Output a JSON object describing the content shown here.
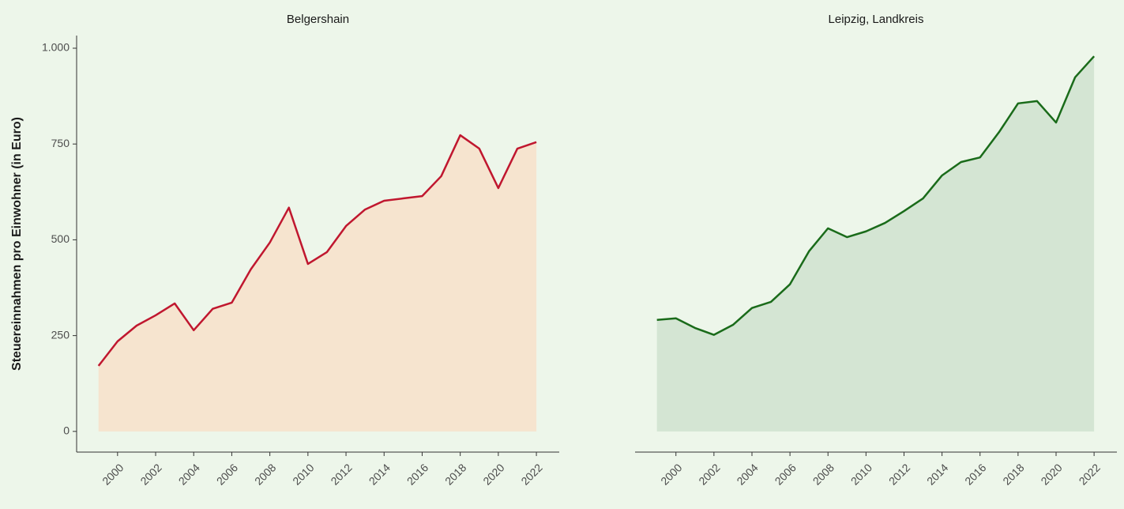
{
  "chart_data": [
    {
      "type": "area",
      "title": "Belgershain",
      "ylabel": "Steuereinnahmen pro Einwohner (in Euro)",
      "x": [
        1999,
        2000,
        2001,
        2002,
        2003,
        2004,
        2005,
        2006,
        2007,
        2008,
        2009,
        2010,
        2011,
        2012,
        2013,
        2014,
        2015,
        2016,
        2017,
        2018,
        2019,
        2020,
        2021,
        2022
      ],
      "values": [
        171,
        235,
        276,
        303,
        334,
        264,
        320,
        336,
        423,
        493,
        584,
        437,
        468,
        536,
        579,
        602,
        608,
        614,
        666,
        773,
        738,
        635,
        738,
        755
      ],
      "line_color": "#c0172f",
      "fill_color": "#f6e4cf",
      "xlim": [
        1997.85,
        2023.2
      ],
      "xticks": [
        2000,
        2002,
        2004,
        2006,
        2008,
        2010,
        2012,
        2014,
        2016,
        2018,
        2020,
        2022
      ],
      "ylim": [
        -54,
        1033
      ],
      "yticks": [
        0,
        250,
        500,
        750,
        {
          "value": 1000,
          "label": "1.000"
        }
      ]
    },
    {
      "type": "area",
      "title": "Leipzig, Landkreis",
      "x": [
        1999,
        2000,
        2001,
        2002,
        2003,
        2004,
        2005,
        2006,
        2007,
        2008,
        2009,
        2010,
        2011,
        2012,
        2013,
        2014,
        2015,
        2016,
        2017,
        2018,
        2019,
        2020,
        2021,
        2022
      ],
      "values": [
        291,
        295,
        270,
        252,
        278,
        322,
        338,
        384,
        470,
        530,
        507,
        522,
        544,
        575,
        608,
        668,
        703,
        715,
        781,
        856,
        862,
        806,
        924,
        979
      ],
      "line_color": "#1a6b1a",
      "fill_color": "#d4e5d3",
      "xlim": [
        1997.85,
        2023.2
      ],
      "xticks": [
        2000,
        2002,
        2004,
        2006,
        2008,
        2010,
        2012,
        2014,
        2016,
        2018,
        2020,
        2022
      ],
      "ylim": [
        -54,
        1033
      ]
    }
  ]
}
